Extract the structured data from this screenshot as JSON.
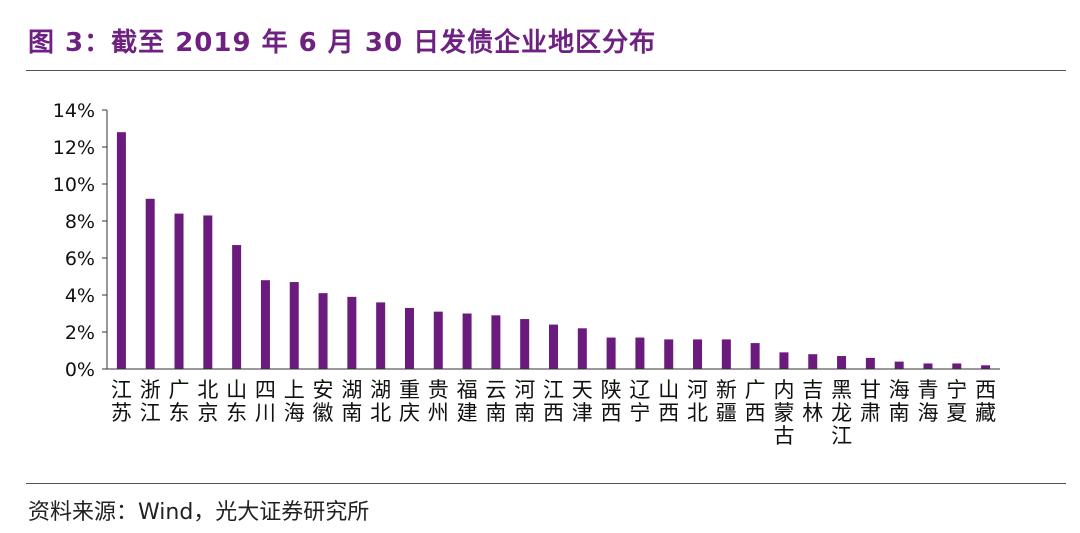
{
  "header": {
    "title": "图 3：截至 2019 年 6 月 30 日发债企业地区分布"
  },
  "footer": {
    "source": "资料来源：Wind，光大证券研究所"
  },
  "colors": {
    "bar": "#6a1b7d",
    "title": "#6e2180"
  },
  "chart_data": {
    "type": "bar",
    "title": "",
    "xlabel": "",
    "ylabel": "",
    "ylim": [
      0,
      14
    ],
    "ytick_labels": [
      "0%",
      "2%",
      "4%",
      "6%",
      "8%",
      "10%",
      "12%",
      "14%"
    ],
    "grid": false,
    "legend": "none",
    "categories": [
      "江苏",
      "浙江",
      "广东",
      "北京",
      "山东",
      "四川",
      "上海",
      "安徽",
      "湖南",
      "湖北",
      "重庆",
      "贵州",
      "福建",
      "云南",
      "河南",
      "江西",
      "天津",
      "陕西",
      "辽宁",
      "山西",
      "河北",
      "新疆",
      "广西",
      "内蒙古",
      "吉林",
      "黑龙江",
      "甘肃",
      "海南",
      "青海",
      "宁夏",
      "西藏"
    ],
    "values": [
      12.8,
      9.2,
      8.4,
      8.3,
      6.7,
      4.8,
      4.7,
      4.1,
      3.9,
      3.6,
      3.3,
      3.1,
      3.0,
      2.9,
      2.7,
      2.4,
      2.2,
      1.7,
      1.7,
      1.6,
      1.6,
      1.6,
      1.4,
      0.9,
      0.8,
      0.7,
      0.6,
      0.4,
      0.3,
      0.3,
      0.2
    ],
    "value_unit": "%"
  }
}
